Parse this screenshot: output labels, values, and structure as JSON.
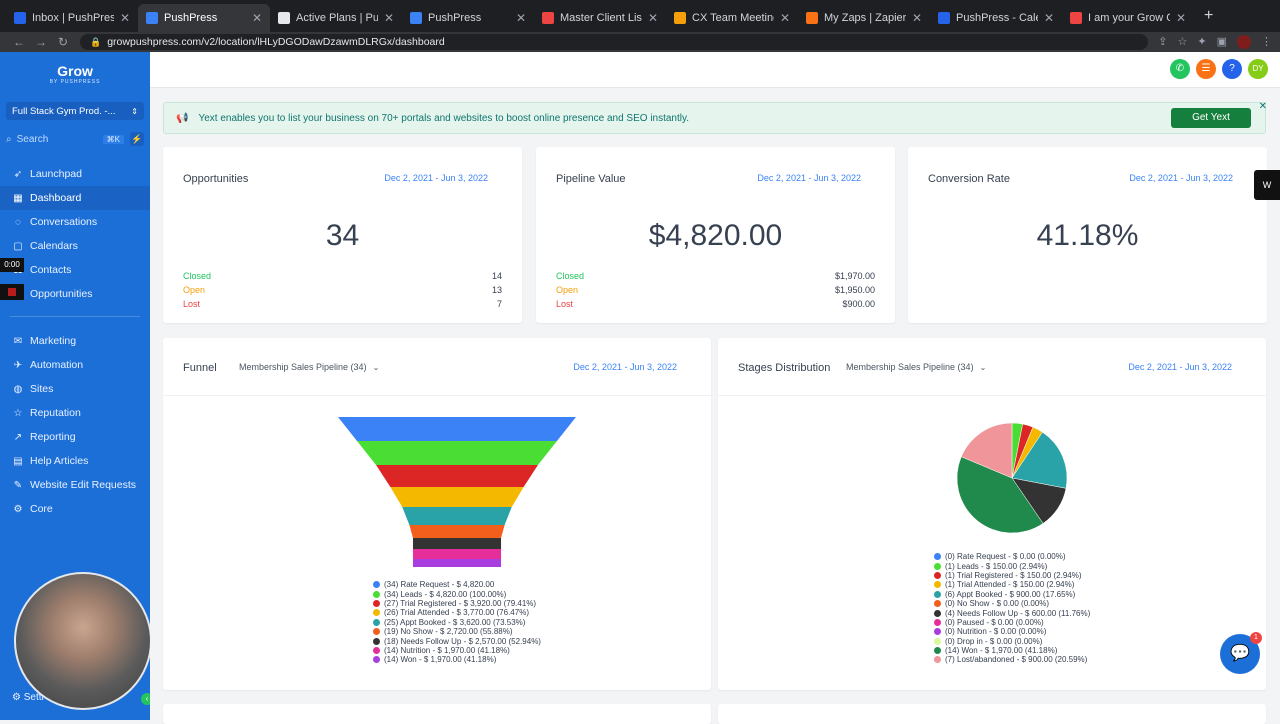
{
  "browser": {
    "tabs": [
      {
        "title": "Inbox | PushPress | Inte",
        "color": "#2563eb",
        "active": false
      },
      {
        "title": "PushPress",
        "color": "#3b82f6",
        "active": true
      },
      {
        "title": "Active Plans | PushPres",
        "color": "#e5e7eb",
        "active": false
      },
      {
        "title": "PushPress",
        "color": "#3b82f6",
        "active": false
      },
      {
        "title": "Master Client List",
        "color": "#ef4444",
        "active": false
      },
      {
        "title": "CX Team Meetings | Lis",
        "color": "#f59e0b",
        "active": false
      },
      {
        "title": "My Zaps | Zapier",
        "color": "#f97316",
        "active": false
      },
      {
        "title": "PushPress - Calendar",
        "color": "#2563eb",
        "active": false
      },
      {
        "title": "I am your Grow Onboar",
        "color": "#ef4444",
        "active": false
      }
    ],
    "url": "growpushpress.com/v2/location/lHLyDGODawDzawmDLRGx/dashboard"
  },
  "sidebar": {
    "logo": "Grow",
    "logo_sub": "BY PUSHPRESS",
    "location": "Full Stack Gym Prod. -...",
    "search_placeholder": "Search",
    "search_kbd": "⌘K",
    "items_top": [
      {
        "label": "Launchpad",
        "icon": "rocket-icon",
        "active": false
      },
      {
        "label": "Dashboard",
        "icon": "grid-icon",
        "active": true
      },
      {
        "label": "Conversations",
        "icon": "chat-icon",
        "active": false
      },
      {
        "label": "Calendars",
        "icon": "calendar-icon",
        "active": false
      },
      {
        "label": "Contacts",
        "icon": "contacts-icon",
        "active": false
      },
      {
        "label": "Opportunities",
        "icon": "funnel-icon",
        "active": false
      }
    ],
    "items_bottom": [
      {
        "label": "Marketing",
        "icon": "megaphone-icon"
      },
      {
        "label": "Automation",
        "icon": "automation-icon"
      },
      {
        "label": "Sites",
        "icon": "globe-icon"
      },
      {
        "label": "Reputation",
        "icon": "star-icon"
      },
      {
        "label": "Reporting",
        "icon": "chart-icon"
      },
      {
        "label": "Help Articles",
        "icon": "book-icon"
      },
      {
        "label": "Website Edit Requests",
        "icon": "wrench-icon"
      },
      {
        "label": "Core",
        "icon": "gear-icon"
      }
    ],
    "recording_time": "0:00",
    "settings_label": "Setti"
  },
  "header": {
    "icons": [
      {
        "name": "phone-icon",
        "glyph": "✆",
        "color": "#22c55e"
      },
      {
        "name": "list-icon",
        "glyph": "☰",
        "color": "#f97316"
      },
      {
        "name": "help-icon",
        "glyph": "?",
        "color": "#2563eb"
      },
      {
        "name": "user-avatar",
        "glyph": "DY",
        "color": "#84cc16"
      }
    ]
  },
  "banner": {
    "text": "Yext enables you to list your business on 70+ portals and websites to boost online presence and SEO instantly.",
    "cta": "Get Yext"
  },
  "stats": [
    {
      "title": "Opportunities",
      "date": "Dec 2, 2021 - Jun 3, 2022",
      "value": "34",
      "rows": [
        {
          "label": "Closed",
          "value": "14"
        },
        {
          "label": "Open",
          "value": "13"
        },
        {
          "label": "Lost",
          "value": "7"
        }
      ]
    },
    {
      "title": "Pipeline Value",
      "date": "Dec 2, 2021 - Jun 3, 2022",
      "value": "$4,820.00",
      "rows": [
        {
          "label": "Closed",
          "value": "$1,970.00"
        },
        {
          "label": "Open",
          "value": "$1,950.00"
        },
        {
          "label": "Lost",
          "value": "$900.00"
        }
      ]
    },
    {
      "title": "Conversion Rate",
      "date": "Dec 2, 2021 - Jun 3, 2022",
      "value": "41.18%",
      "rows": []
    }
  ],
  "funnel": {
    "title": "Funnel",
    "pipeline": "Membership Sales Pipeline (34)",
    "date": "Dec 2, 2021 - Jun 3, 2022"
  },
  "stages": {
    "title": "Stages Distribution",
    "pipeline": "Membership Sales Pipeline (34)",
    "date": "Dec 2, 2021 - Jun 3, 2022"
  },
  "chart_data": [
    {
      "type": "bar",
      "subtype": "funnel",
      "categories": [
        "Rate Request",
        "Leads",
        "Trial Registered",
        "Trial Attended",
        "Appt Booked",
        "No Show",
        "Needs Follow Up",
        "Nutrition",
        "Won"
      ],
      "counts": [
        34,
        34,
        27,
        26,
        25,
        19,
        18,
        14,
        14
      ],
      "values": [
        4820.0,
        4820.0,
        3920.0,
        3770.0,
        3620.0,
        2720.0,
        2570.0,
        1970.0,
        1970.0
      ],
      "percent": [
        null,
        100.0,
        79.41,
        76.47,
        73.53,
        55.88,
        52.94,
        41.18,
        41.18
      ],
      "legend": [
        "(34) Rate Request - $ 4,820.00",
        "(34) Leads - $ 4,820.00 (100.00%)",
        "(27) Trial Registered - $ 3,920.00 (79.41%)",
        "(26) Trial Attended - $ 3,770.00 (76.47%)",
        "(25) Appt Booked - $ 3,620.00 (73.53%)",
        "(19) No Show - $ 2,720.00 (55.88%)",
        "(18) Needs Follow Up - $ 2,570.00 (52.94%)",
        "(14) Nutrition - $ 1,970.00 (41.18%)",
        "(14) Won - $ 1,970.00 (41.18%)"
      ],
      "colors": [
        "#3b82f6",
        "#4ade34",
        "#dc2626",
        "#f5b800",
        "#2aa3a8",
        "#f25f1c",
        "#333333",
        "#e52e9a",
        "#a93ee0"
      ]
    },
    {
      "type": "pie",
      "categories": [
        "Rate Request",
        "Leads",
        "Trial Registered",
        "Trial Attended",
        "Appt Booked",
        "No Show",
        "Needs Follow Up",
        "Paused",
        "Nutrition",
        "Drop in",
        "Won",
        "Lost/abandoned"
      ],
      "counts": [
        0,
        1,
        1,
        1,
        6,
        0,
        4,
        0,
        0,
        0,
        14,
        7
      ],
      "values": [
        0.0,
        150.0,
        150.0,
        150.0,
        900.0,
        0.0,
        600.0,
        0.0,
        0.0,
        0.0,
        1970.0,
        900.0
      ],
      "percent": [
        0.0,
        2.94,
        2.94,
        2.94,
        17.65,
        0.0,
        11.76,
        0.0,
        0.0,
        0.0,
        41.18,
        20.59
      ],
      "legend": [
        "(0) Rate Request - $ 0.00 (0.00%)",
        "(1) Leads - $ 150.00 (2.94%)",
        "(1) Trial Registered - $ 150.00 (2.94%)",
        "(1) Trial Attended - $ 150.00 (2.94%)",
        "(6) Appt Booked - $ 900.00 (17.65%)",
        "(0) No Show - $ 0.00 (0.00%)",
        "(4) Needs Follow Up - $ 600.00 (11.76%)",
        "(0) Paused - $ 0.00 (0.00%)",
        "(0) Nutrition - $ 0.00 (0.00%)",
        "(0) Drop in - $ 0.00 (0.00%)",
        "(14) Won - $ 1,970.00 (41.18%)",
        "(7) Lost/abandoned - $ 900.00 (20.59%)"
      ],
      "colors": [
        "#3b82f6",
        "#4ade34",
        "#dc2626",
        "#f5b800",
        "#2aa3a8",
        "#f25f1c",
        "#333333",
        "#e52e9a",
        "#a93ee0",
        "#d9f99d",
        "#1f8a4c",
        "#f0959a"
      ]
    }
  ],
  "chat": {
    "badge": "1"
  }
}
